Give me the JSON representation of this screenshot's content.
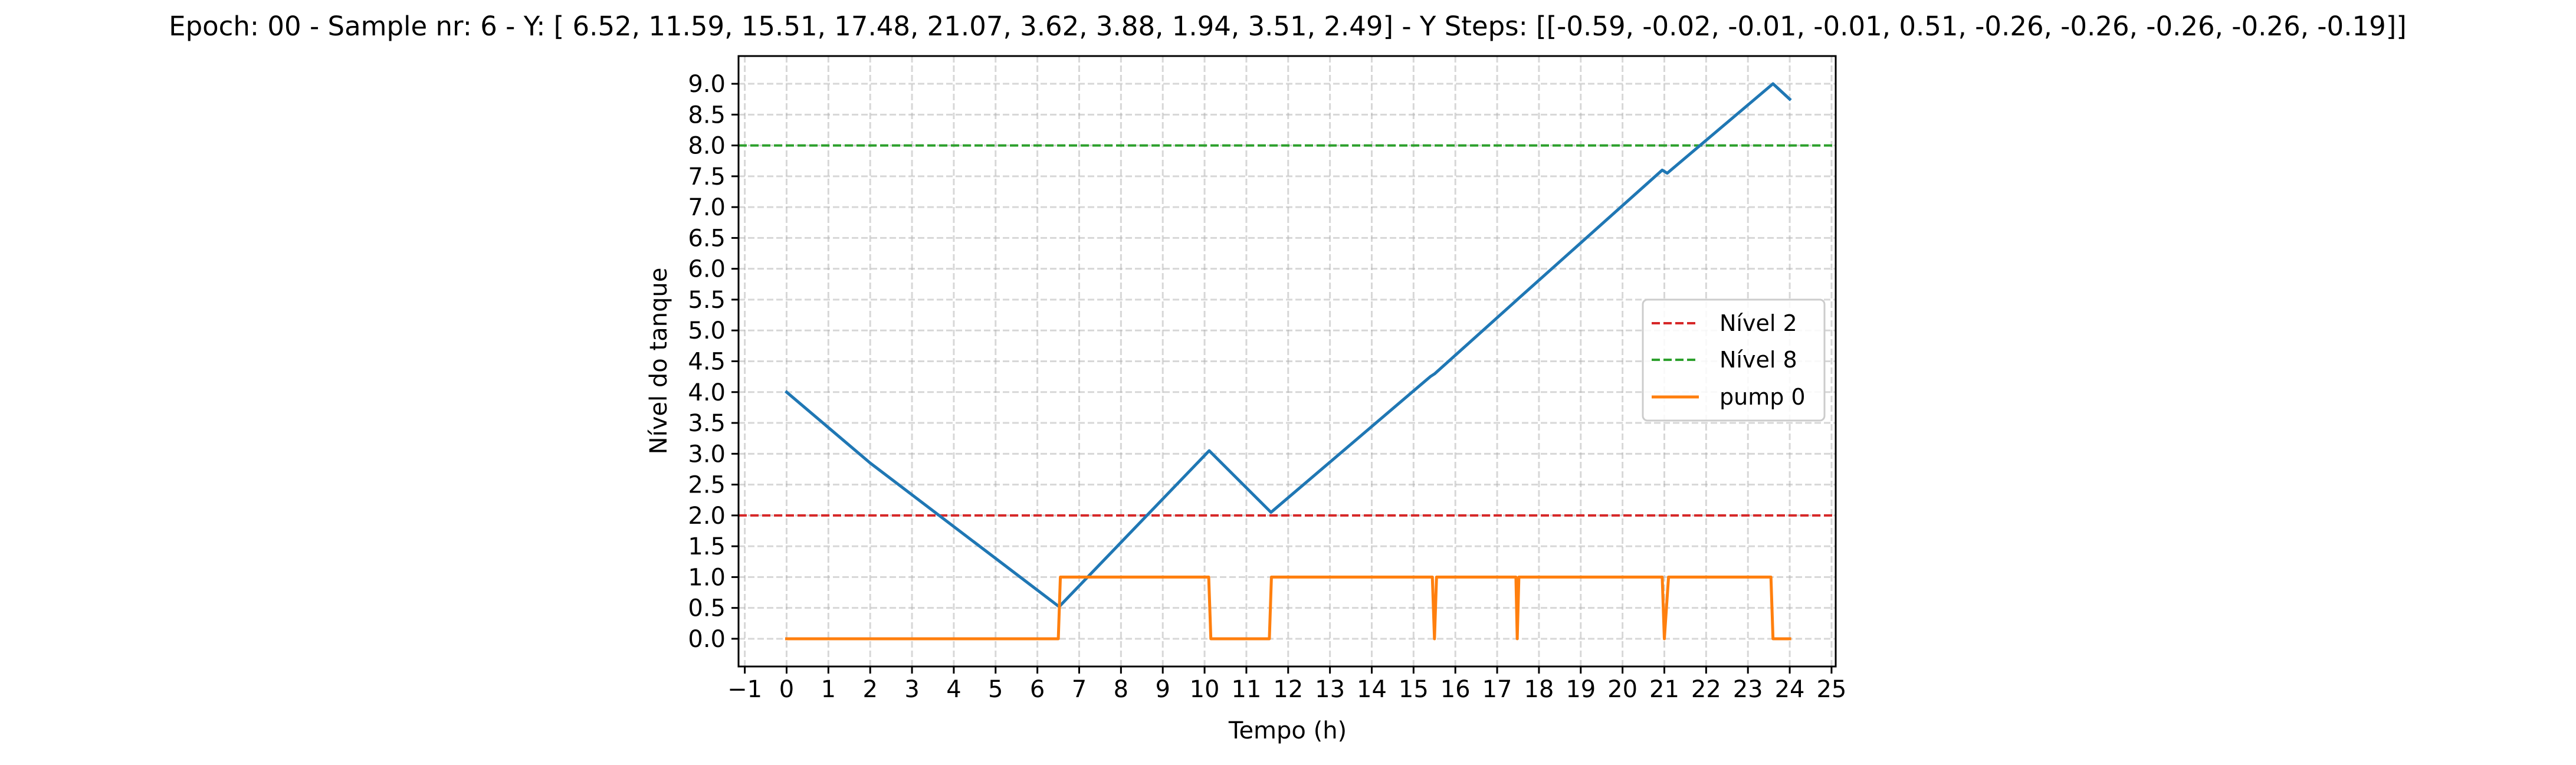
{
  "chart_data": {
    "type": "line",
    "title": "Epoch: 00 - Sample nr: 6 - Y: [ 6.52, 11.59, 15.51, 17.48, 21.07,  3.62,  3.88,  1.94,  3.51,  2.49] - Y Steps: [[-0.59, -0.02, -0.01, -0.01,  0.51, -0.26, -0.26, -0.26, -0.26, -0.19]]",
    "xlabel": "Tempo (h)",
    "ylabel": "Nível do tanque",
    "xlim": [
      -1.15,
      25.1
    ],
    "ylim": [
      -0.45,
      9.45
    ],
    "x_ticks": [
      -1,
      0,
      1,
      2,
      3,
      4,
      5,
      6,
      7,
      8,
      9,
      10,
      11,
      12,
      13,
      14,
      15,
      16,
      17,
      18,
      19,
      20,
      21,
      22,
      23,
      24,
      25
    ],
    "x_tick_labels": [
      "−1",
      "0",
      "1",
      "2",
      "3",
      "4",
      "5",
      "6",
      "7",
      "8",
      "9",
      "10",
      "11",
      "12",
      "13",
      "14",
      "15",
      "16",
      "17",
      "18",
      "19",
      "20",
      "21",
      "22",
      "23",
      "24",
      "25"
    ],
    "y_ticks": [
      0.0,
      0.5,
      1.0,
      1.5,
      2.0,
      2.5,
      3.0,
      3.5,
      4.0,
      4.5,
      5.0,
      5.5,
      6.0,
      6.5,
      7.0,
      7.5,
      8.0,
      8.5,
      9.0
    ],
    "y_tick_labels": [
      "0.0",
      "0.5",
      "1.0",
      "1.5",
      "2.0",
      "2.5",
      "3.0",
      "3.5",
      "4.0",
      "4.5",
      "5.0",
      "5.5",
      "6.0",
      "6.5",
      "7.0",
      "7.5",
      "8.0",
      "8.5",
      "9.0"
    ],
    "grid": true,
    "legend_position": "center-right",
    "hlines": [
      {
        "name": "Nível 2",
        "y": 2.0,
        "color": "#d62728",
        "style": "dashed"
      },
      {
        "name": "Nível 8",
        "y": 8.0,
        "color": "#2ca02c",
        "style": "dashed"
      }
    ],
    "series": [
      {
        "color": "#1f77b4",
        "x": [
          0,
          2.0,
          6.52,
          10.11,
          11.59,
          15.4,
          15.51,
          17.4,
          17.48,
          20.95,
          21.07,
          23.6,
          24.0
        ],
        "y": [
          4.0,
          2.85,
          0.52,
          3.05,
          2.05,
          4.25,
          4.3,
          5.45,
          5.5,
          7.6,
          7.55,
          9.0,
          8.75
        ]
      },
      {
        "name": "pump 0",
        "color": "#ff7f0e",
        "x": [
          0,
          6.5,
          6.55,
          10.1,
          10.15,
          11.55,
          11.6,
          15.45,
          15.5,
          15.55,
          17.45,
          17.48,
          17.52,
          20.95,
          21.0,
          21.1,
          23.55,
          23.6,
          24.0
        ],
        "y": [
          0,
          0,
          1,
          1,
          0,
          0,
          1,
          1,
          0,
          1,
          1,
          0,
          1,
          1,
          0,
          1,
          1,
          0,
          0
        ]
      }
    ],
    "legend": [
      {
        "label": "Nível 2",
        "color": "#d62728",
        "style": "dashed"
      },
      {
        "label": "Nível 8",
        "color": "#2ca02c",
        "style": "dashed"
      },
      {
        "label": "pump 0",
        "color": "#ff7f0e",
        "style": "solid"
      }
    ]
  }
}
